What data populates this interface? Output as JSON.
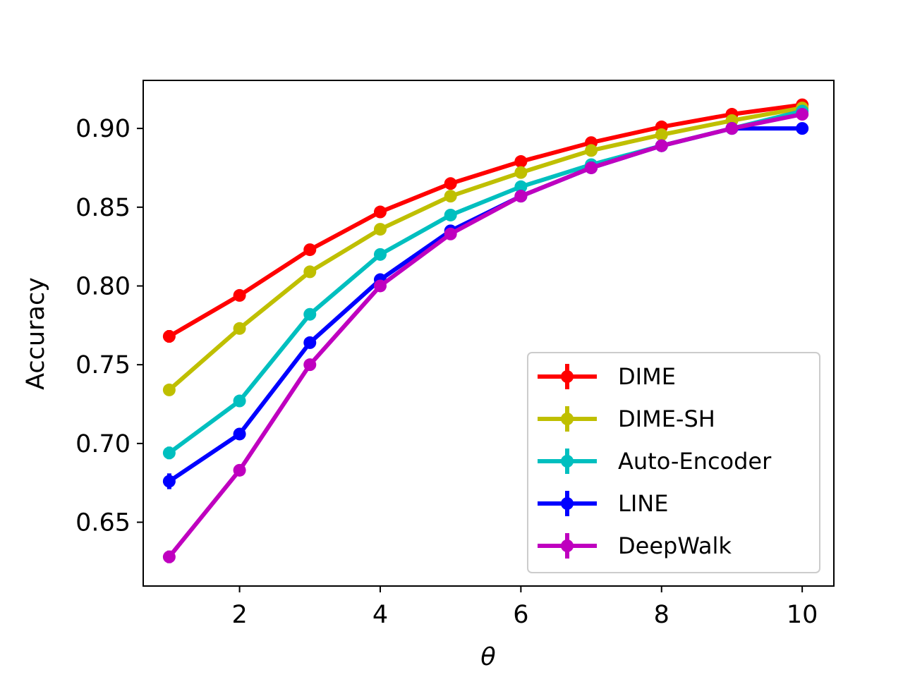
{
  "chart_data": {
    "type": "line",
    "title": "",
    "xlabel": "θ",
    "ylabel": "Accuracy",
    "xlim": [
      0.63,
      10.45
    ],
    "ylim": [
      0.6095,
      0.9305
    ],
    "xticks": [
      2,
      4,
      6,
      8,
      10
    ],
    "xtick_labels": [
      "2",
      "4",
      "6",
      "8",
      "10"
    ],
    "yticks": [
      0.65,
      0.7,
      0.75,
      0.8,
      0.85,
      0.9
    ],
    "ytick_labels": [
      "0.65",
      "0.70",
      "0.75",
      "0.80",
      "0.85",
      "0.90"
    ],
    "grid": false,
    "legend_position": "lower-right",
    "x": [
      1,
      2,
      3,
      4,
      5,
      6,
      7,
      8,
      9,
      10
    ],
    "series": [
      {
        "name": "DIME",
        "color": "#ff0000",
        "values": [
          0.768,
          0.794,
          0.823,
          0.847,
          0.865,
          0.879,
          0.891,
          0.901,
          0.909,
          0.915
        ],
        "errors": [
          0.004,
          0.002,
          0.002,
          0.002,
          0.002,
          0.002,
          0.002,
          0.002,
          0.002,
          0.002
        ]
      },
      {
        "name": "DIME-SH",
        "color": "#bfbf00",
        "values": [
          0.734,
          0.773,
          0.809,
          0.836,
          0.857,
          0.872,
          0.886,
          0.896,
          0.905,
          0.913
        ],
        "errors": [
          0.003,
          0.002,
          0.002,
          0.002,
          0.002,
          0.002,
          0.002,
          0.002,
          0.002,
          0.002
        ]
      },
      {
        "name": "Auto-Encoder",
        "color": "#00bfbf",
        "values": [
          0.694,
          0.727,
          0.782,
          0.82,
          0.845,
          0.863,
          0.877,
          0.889,
          0.9,
          0.911
        ],
        "errors": [
          0.004,
          0.002,
          0.002,
          0.002,
          0.002,
          0.002,
          0.002,
          0.002,
          0.002,
          0.002
        ]
      },
      {
        "name": "LINE",
        "color": "#0000ff",
        "values": [
          0.676,
          0.706,
          0.764,
          0.804,
          0.835,
          0.857,
          0.875,
          0.889,
          0.9,
          0.9
        ],
        "errors": [
          0.005,
          0.002,
          0.002,
          0.002,
          0.002,
          0.002,
          0.002,
          0.002,
          0.002,
          0.002
        ]
      },
      {
        "name": "DeepWalk",
        "color": "#bf00bf",
        "values": [
          0.628,
          0.683,
          0.75,
          0.8,
          0.833,
          0.857,
          0.875,
          0.889,
          0.9,
          0.909
        ],
        "errors": [
          0.004,
          0.002,
          0.002,
          0.002,
          0.002,
          0.002,
          0.002,
          0.002,
          0.002,
          0.002
        ]
      }
    ]
  }
}
